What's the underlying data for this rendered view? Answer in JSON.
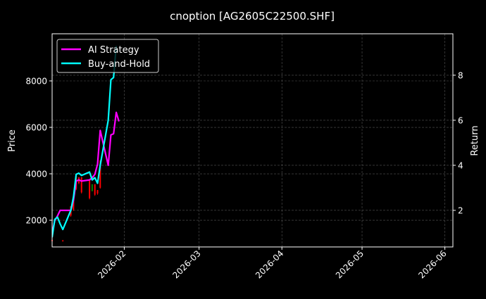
{
  "chart_data": {
    "type": "line",
    "title": "cnoption [AG2605C22500.SHF]",
    "xlabel": "",
    "ylabel": "Price",
    "ylabel_right": "Return",
    "xlim": [
      "2026-01-05",
      "2026-06-04"
    ],
    "ylim": [
      850,
      10030
    ],
    "ylim_right": [
      0.375,
      9.84
    ],
    "x_ticks": [
      "2026-02-01",
      "2026-03-01",
      "2026-04-01",
      "2026-05-01",
      "2026-06-01"
    ],
    "x_tick_labels": [
      "2026-02",
      "2026-03",
      "2026-04",
      "2026-05",
      "2026-06"
    ],
    "y_ticks": [
      2000,
      4000,
      6000,
      8000
    ],
    "y_ticks_right": [
      2,
      4,
      6,
      8
    ],
    "grid": true,
    "legend_position": "top-left",
    "background": "#000000",
    "series": [
      {
        "name": "AI Strategy",
        "axis": "right",
        "color": "#ff00ff",
        "x": [
          "2026-01-05",
          "2026-01-06",
          "2026-01-07",
          "2026-01-08",
          "2026-01-09",
          "2026-01-12",
          "2026-01-13",
          "2026-01-14",
          "2026-01-15",
          "2026-01-16",
          "2026-01-19",
          "2026-01-20",
          "2026-01-21",
          "2026-01-22",
          "2026-01-23",
          "2026-01-26",
          "2026-01-27",
          "2026-01-28",
          "2026-01-29",
          "2026-01-30"
        ],
        "values": [
          1.0,
          1.55,
          1.75,
          2.0,
          2.0,
          2.0,
          2.45,
          3.3,
          3.35,
          3.3,
          3.35,
          3.45,
          3.6,
          4.05,
          5.55,
          4.0,
          5.35,
          5.4,
          6.35,
          5.95
        ]
      },
      {
        "name": "Buy-and-Hold",
        "axis": "right",
        "color": "#00ffff",
        "x": [
          "2026-01-05",
          "2026-01-06",
          "2026-01-07",
          "2026-01-08",
          "2026-01-09",
          "2026-01-12",
          "2026-01-13",
          "2026-01-14",
          "2026-01-15",
          "2026-01-16",
          "2026-01-19",
          "2026-01-20",
          "2026-01-21",
          "2026-01-22",
          "2026-01-23",
          "2026-01-26",
          "2026-01-27",
          "2026-01-28",
          "2026-01-29"
        ],
        "values": [
          0.8,
          1.6,
          1.7,
          1.4,
          1.15,
          2.0,
          2.6,
          3.6,
          3.65,
          3.55,
          3.7,
          3.35,
          3.45,
          3.2,
          4.0,
          6.0,
          7.8,
          7.9,
          9.3
        ]
      }
    ],
    "candles": {
      "axis": "left",
      "up_color": "#008000",
      "down_color": "#ff0000",
      "data": [
        {
          "date": "2026-01-05",
          "open": 1150,
          "high": 1180,
          "low": 1080,
          "close": 1100
        },
        {
          "date": "2026-01-09",
          "open": 1130,
          "high": 1150,
          "low": 1080,
          "close": 1100
        },
        {
          "date": "2026-01-12",
          "open": 2600,
          "high": 2600,
          "low": 2150,
          "close": 2200
        },
        {
          "date": "2026-01-13",
          "open": 2850,
          "high": 2850,
          "low": 2400,
          "close": 2450
        },
        {
          "date": "2026-01-14",
          "open": 3900,
          "high": 3900,
          "low": 3300,
          "close": 3350
        },
        {
          "date": "2026-01-15",
          "open": 3850,
          "high": 3850,
          "low": 3550,
          "close": 3600
        },
        {
          "date": "2026-01-16",
          "open": 3850,
          "high": 3850,
          "low": 3150,
          "close": 3200
        },
        {
          "date": "2026-01-19",
          "open": 3750,
          "high": 3750,
          "low": 2900,
          "close": 2950
        },
        {
          "date": "2026-01-20",
          "open": 3250,
          "high": 3550,
          "low": 3250,
          "close": 3550
        },
        {
          "date": "2026-01-21",
          "open": 3550,
          "high": 3550,
          "low": 3050,
          "close": 3100
        },
        {
          "date": "2026-01-22",
          "open": 3300,
          "high": 3300,
          "low": 3100,
          "close": 3150
        },
        {
          "date": "2026-01-23",
          "open": 4580,
          "high": 4580,
          "low": 3360,
          "close": 3400
        }
      ]
    }
  }
}
